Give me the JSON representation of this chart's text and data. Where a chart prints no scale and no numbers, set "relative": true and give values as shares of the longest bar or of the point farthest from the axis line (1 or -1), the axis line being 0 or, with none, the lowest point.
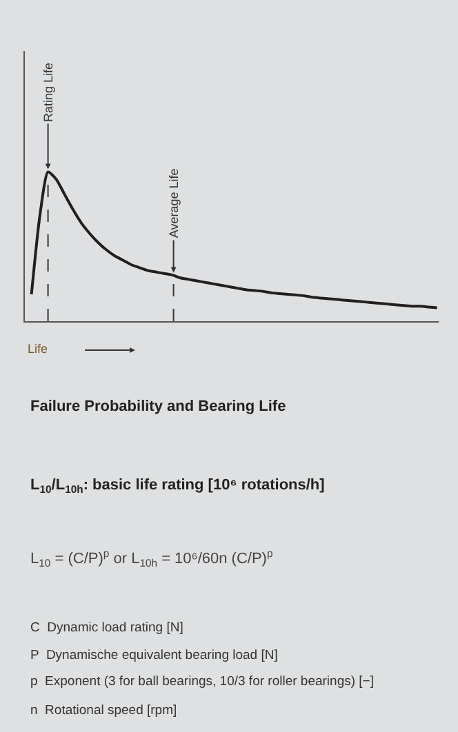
{
  "chart_data": {
    "type": "line",
    "relative": true,
    "title": "Failure Probability and Bearing Life",
    "subtitle": "L$_{10}$/L$_{10h}$: basic life rating [10⁶ rotations/h]",
    "xlabel": "Life",
    "categories": [
      null,
      null,
      null,
      null,
      null,
      null,
      null,
      null,
      null,
      null,
      null,
      null,
      null,
      null,
      null,
      null,
      null,
      null,
      null,
      null,
      null,
      null,
      null,
      null,
      null,
      null,
      null,
      null,
      null,
      null,
      null,
      null,
      null,
      null,
      null,
      null,
      null,
      null,
      null,
      null,
      null,
      null,
      null,
      null,
      null,
      null,
      null,
      null,
      null,
      null
    ],
    "series": [
      {
        "color": "#231f20",
        "values": [
          0.18,
          0.7,
          1.0,
          0.95,
          0.85,
          0.75,
          0.66,
          0.59,
          0.53,
          0.48,
          0.44,
          0.41,
          0.38,
          0.36,
          0.34,
          0.33,
          0.32,
          0.31,
          0.29,
          0.28,
          0.27,
          0.26,
          0.25,
          0.24,
          0.23,
          0.22,
          0.21,
          0.205,
          0.2,
          0.19,
          0.185,
          0.18,
          0.175,
          0.17,
          0.16,
          0.155,
          0.15,
          0.145,
          0.14,
          0.135,
          0.13,
          0.125,
          0.12,
          0.115,
          0.11,
          0.105,
          0.1,
          0.1,
          0.095,
          0.09
        ]
      }
    ],
    "annotations": [
      "Rating Life",
      "Average Life",
      "L$_{10}$ = (C/P)$^{p}$ or L$_{10h}$ = 10⁶/60n (C/P)$^{p}$",
      "C  Dynamic load rating [N]",
      "P  Dynamische equivalent bearing load [N]",
      "p  Exponent (3 for ball bearings, 10/3 for roller bearings) [−]",
      "n  Rotational speed [rpm]"
    ]
  }
}
